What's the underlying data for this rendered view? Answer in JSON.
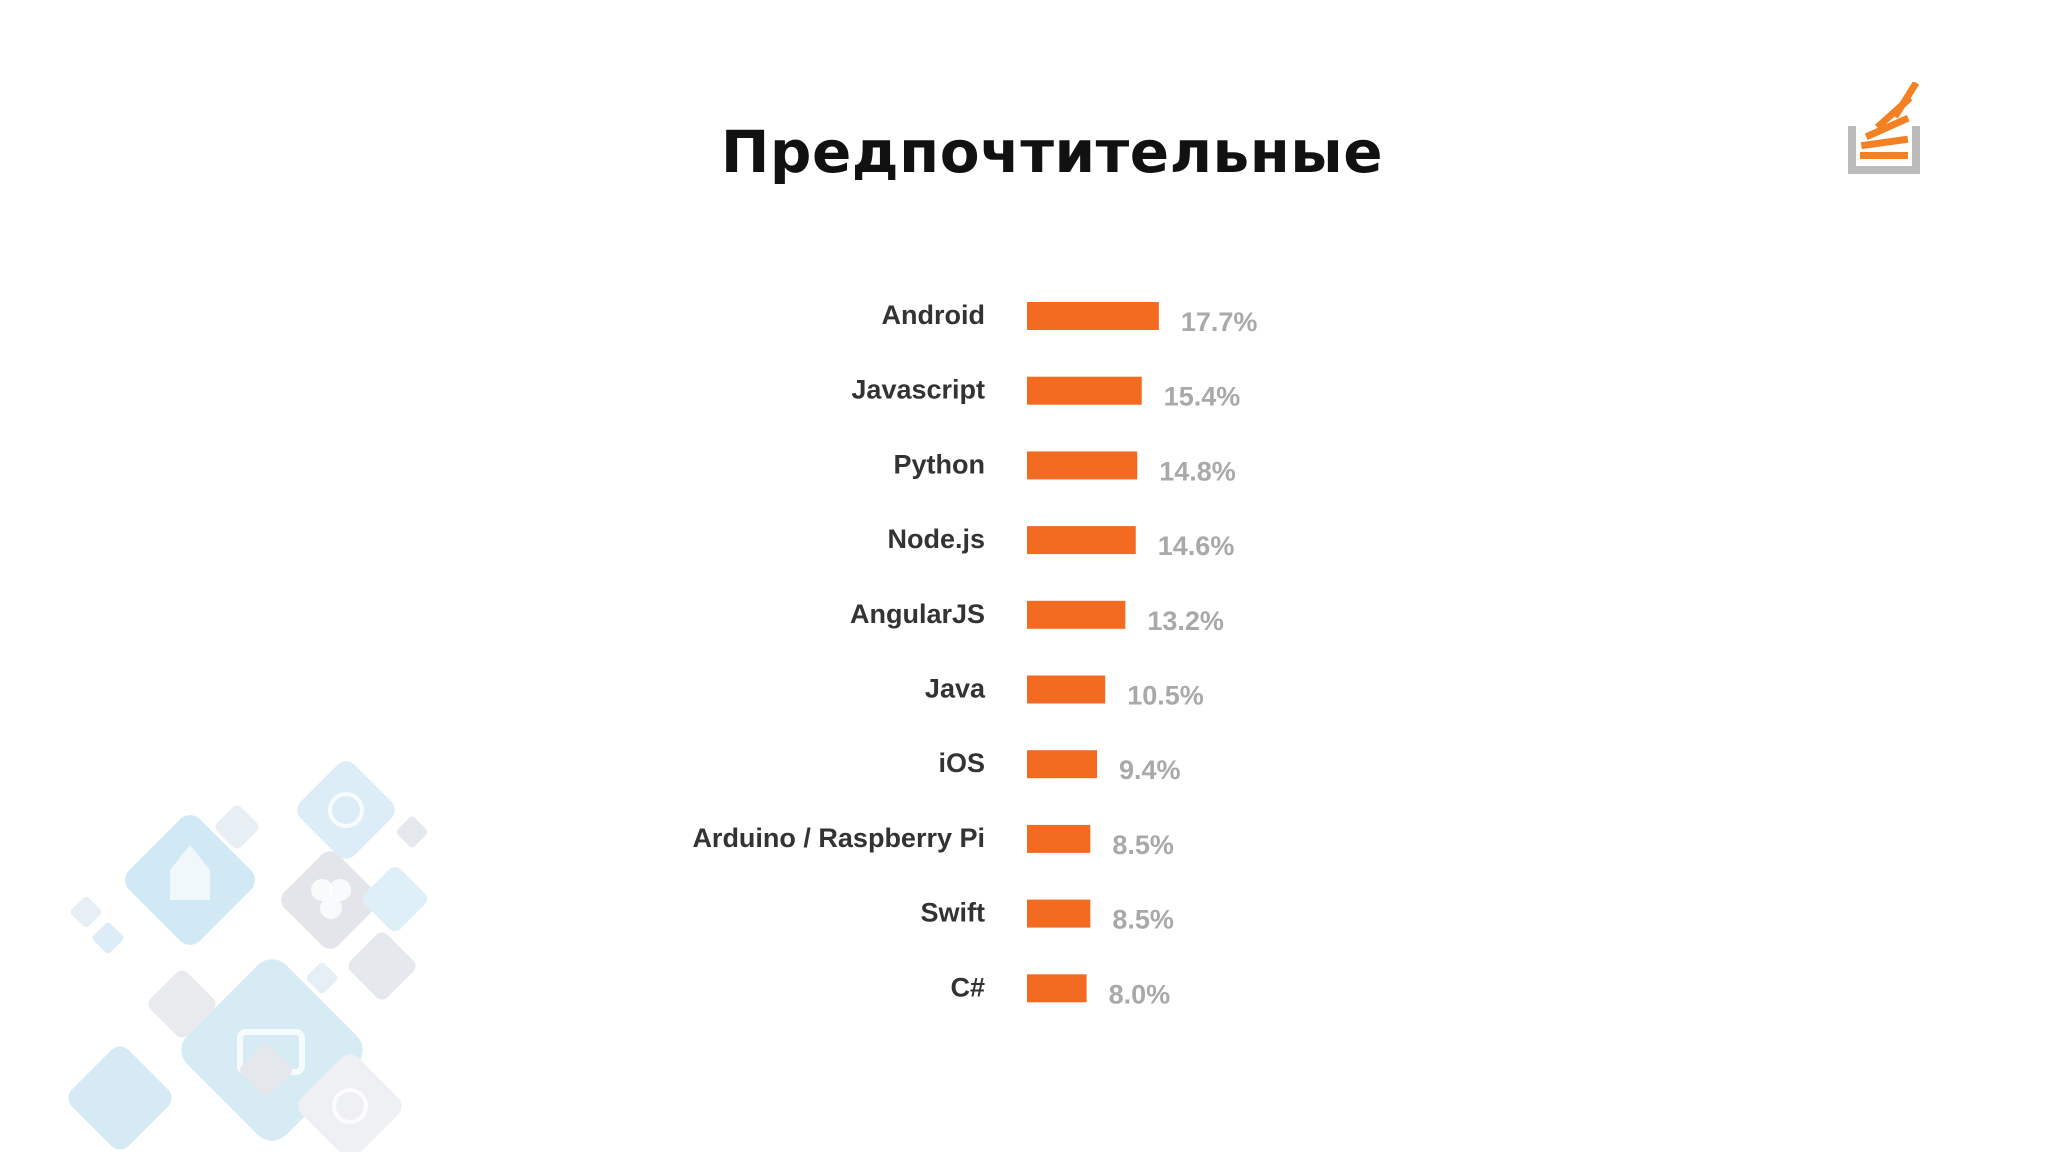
{
  "slide": {
    "title": "Предпочтительные"
  },
  "logo": {
    "icon": "stack-overflow-logo-icon",
    "bar_color": "#f48024",
    "tray_color": "#bcbbbb"
  },
  "decoration": {
    "icon": "programming-tech-icons-pattern",
    "color": "#cfe6f3"
  },
  "chart_data": {
    "type": "bar",
    "orientation": "horizontal",
    "categories": [
      "Android",
      "Javascript",
      "Python",
      "Node.js",
      "AngularJS",
      "Java",
      "iOS",
      "Arduino / Raspberry Pi",
      "Swift",
      "C#"
    ],
    "values": [
      17.7,
      15.4,
      14.8,
      14.6,
      13.2,
      10.5,
      9.4,
      8.5,
      8.5,
      8.0
    ],
    "value_labels": [
      "17.7%",
      "15.4%",
      "14.8%",
      "14.6%",
      "13.2%",
      "10.5%",
      "9.4%",
      "8.5%",
      "8.5%",
      "8.0%"
    ],
    "bar_color": "#f26b21",
    "value_label_color": "#a9a9a9",
    "category_label_color": "#333333",
    "grid": false,
    "legend": false
  }
}
